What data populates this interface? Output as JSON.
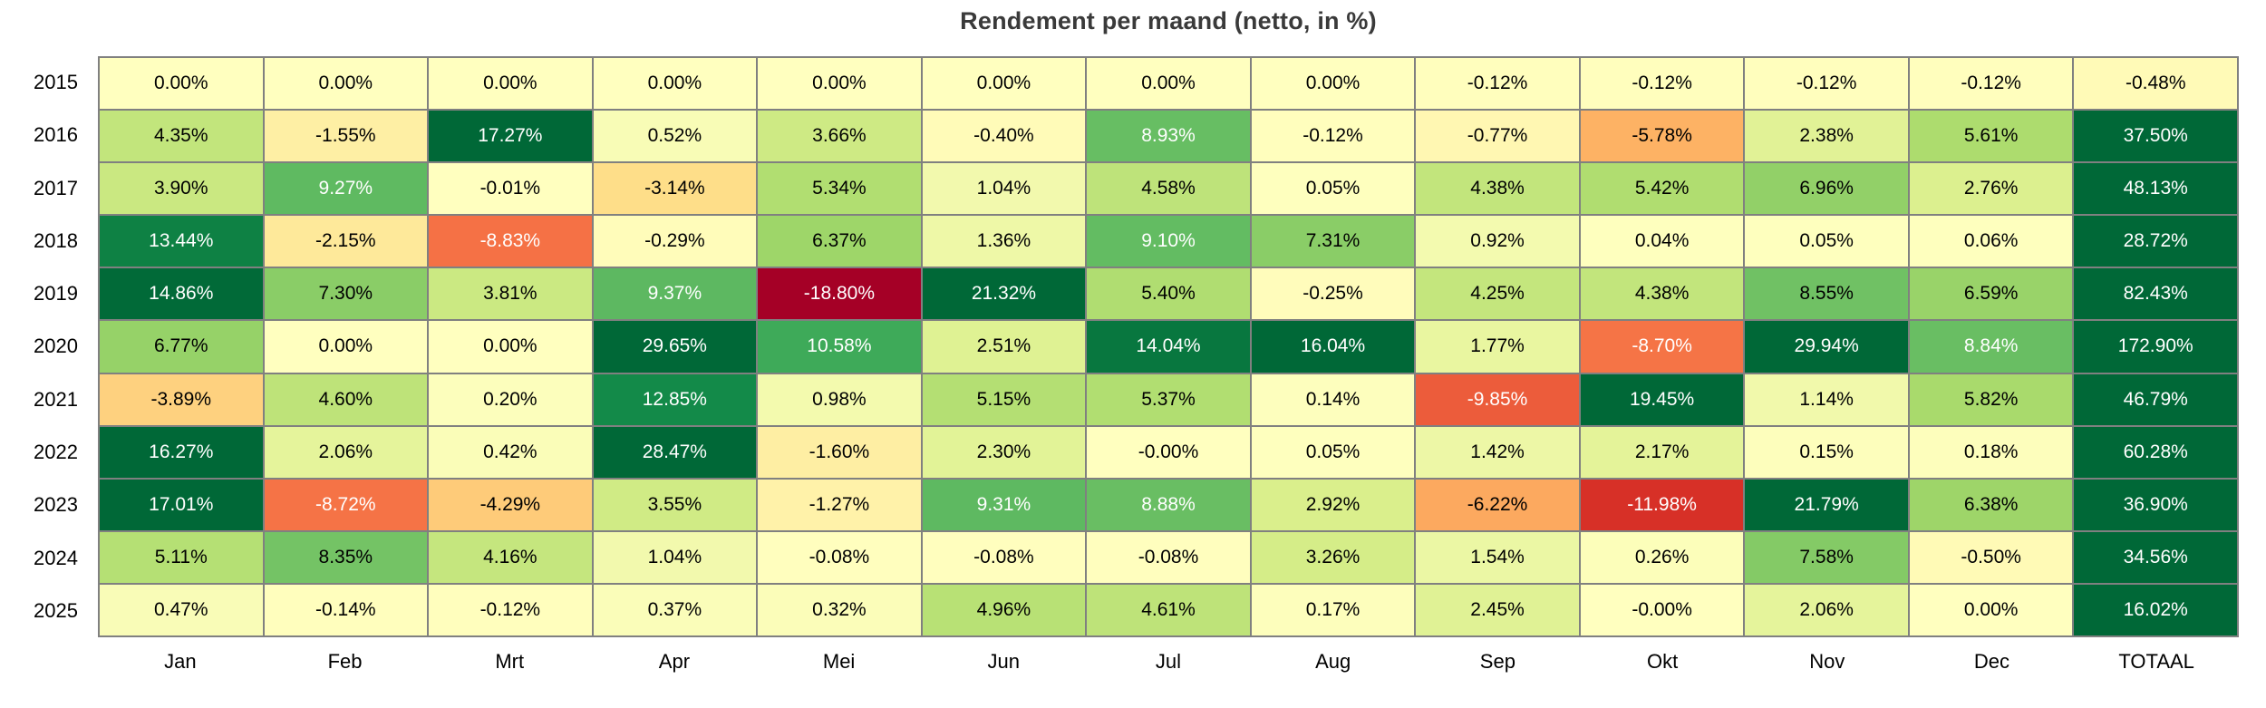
{
  "title": "Rendement per maand (netto, in %)",
  "chart_data": {
    "type": "heatmap",
    "title": "Rendement per maand (netto, in %)",
    "x_labels": [
      "Jan",
      "Feb",
      "Mrt",
      "Apr",
      "Mei",
      "Jun",
      "Jul",
      "Aug",
      "Sep",
      "Okt",
      "Nov",
      "Dec",
      "TOTAAL"
    ],
    "y_labels": [
      "2015",
      "2016",
      "2017",
      "2018",
      "2019",
      "2020",
      "2021",
      "2022",
      "2023",
      "2024",
      "2025"
    ],
    "cell_labels": [
      [
        "0.00%",
        "0.00%",
        "0.00%",
        "0.00%",
        "0.00%",
        "0.00%",
        "0.00%",
        "0.00%",
        "-0.12%",
        "-0.12%",
        "-0.12%",
        "-0.12%",
        "-0.48%"
      ],
      [
        "4.35%",
        "-1.55%",
        "17.27%",
        "0.52%",
        "3.66%",
        "-0.40%",
        "8.93%",
        "-0.12%",
        "-0.77%",
        "-5.78%",
        "2.38%",
        "5.61%",
        "37.50%"
      ],
      [
        "3.90%",
        "9.27%",
        "-0.01%",
        "-3.14%",
        "5.34%",
        "1.04%",
        "4.58%",
        "0.05%",
        "4.38%",
        "5.42%",
        "6.96%",
        "2.76%",
        "48.13%"
      ],
      [
        "13.44%",
        "-2.15%",
        "-8.83%",
        "-0.29%",
        "6.37%",
        "1.36%",
        "9.10%",
        "7.31%",
        "0.92%",
        "0.04%",
        "0.05%",
        "0.06%",
        "28.72%"
      ],
      [
        "14.86%",
        "7.30%",
        "3.81%",
        "9.37%",
        "-18.80%",
        "21.32%",
        "5.40%",
        "-0.25%",
        "4.25%",
        "4.38%",
        "8.55%",
        "6.59%",
        "82.43%"
      ],
      [
        "6.77%",
        "0.00%",
        "0.00%",
        "29.65%",
        "10.58%",
        "2.51%",
        "14.04%",
        "16.04%",
        "1.77%",
        "-8.70%",
        "29.94%",
        "8.84%",
        "172.90%"
      ],
      [
        "-3.89%",
        "4.60%",
        "0.20%",
        "12.85%",
        "0.98%",
        "5.15%",
        "5.37%",
        "0.14%",
        "-9.85%",
        "19.45%",
        "1.14%",
        "5.82%",
        "46.79%"
      ],
      [
        "16.27%",
        "2.06%",
        "0.42%",
        "28.47%",
        "-1.60%",
        "2.30%",
        "-0.00%",
        "0.05%",
        "1.42%",
        "2.17%",
        "0.15%",
        "0.18%",
        "60.28%"
      ],
      [
        "17.01%",
        "-8.72%",
        "-4.29%",
        "3.55%",
        "-1.27%",
        "9.31%",
        "8.88%",
        "2.92%",
        "-6.22%",
        "-11.98%",
        "21.79%",
        "6.38%",
        "36.90%"
      ],
      [
        "5.11%",
        "8.35%",
        "4.16%",
        "1.04%",
        "-0.08%",
        "-0.08%",
        "-0.08%",
        "3.26%",
        "1.54%",
        "0.26%",
        "7.58%",
        "-0.50%",
        "34.56%"
      ],
      [
        "0.47%",
        "-0.14%",
        "-0.12%",
        "0.37%",
        "0.32%",
        "4.96%",
        "4.61%",
        "0.17%",
        "2.45%",
        "-0.00%",
        "2.06%",
        "0.00%",
        "16.02%"
      ]
    ],
    "values": [
      [
        0.0,
        0.0,
        0.0,
        0.0,
        0.0,
        0.0,
        0.0,
        0.0,
        -0.12,
        -0.12,
        -0.12,
        -0.12,
        -0.48
      ],
      [
        4.35,
        -1.55,
        17.27,
        0.52,
        3.66,
        -0.4,
        8.93,
        -0.12,
        -0.77,
        -5.78,
        2.38,
        5.61,
        37.5
      ],
      [
        3.9,
        9.27,
        -0.01,
        -3.14,
        5.34,
        1.04,
        4.58,
        0.05,
        4.38,
        5.42,
        6.96,
        2.76,
        48.13
      ],
      [
        13.44,
        -2.15,
        -8.83,
        -0.29,
        6.37,
        1.36,
        9.1,
        7.31,
        0.92,
        0.04,
        0.05,
        0.06,
        28.72
      ],
      [
        14.86,
        7.3,
        3.81,
        9.37,
        -18.8,
        21.32,
        5.4,
        -0.25,
        4.25,
        4.38,
        8.55,
        6.59,
        82.43
      ],
      [
        6.77,
        0.0,
        0.0,
        29.65,
        10.58,
        2.51,
        14.04,
        16.04,
        1.77,
        -8.7,
        29.94,
        8.84,
        172.9
      ],
      [
        -3.89,
        4.6,
        0.2,
        12.85,
        0.98,
        5.15,
        5.37,
        0.14,
        -9.85,
        19.45,
        1.14,
        5.82,
        46.79
      ],
      [
        16.27,
        2.06,
        0.42,
        28.47,
        -1.6,
        2.3,
        -0.0,
        0.05,
        1.42,
        2.17,
        0.15,
        0.18,
        60.28
      ],
      [
        17.01,
        -8.72,
        -4.29,
        3.55,
        -1.27,
        9.31,
        8.88,
        2.92,
        -6.22,
        -11.98,
        21.79,
        6.38,
        36.9
      ],
      [
        5.11,
        8.35,
        4.16,
        1.04,
        -0.08,
        -0.08,
        -0.08,
        3.26,
        1.54,
        0.26,
        7.58,
        -0.5,
        34.56
      ],
      [
        0.47,
        -0.14,
        -0.12,
        0.37,
        0.32,
        4.96,
        4.61,
        0.17,
        2.45,
        -0.0,
        2.06,
        0.0,
        16.02
      ]
    ],
    "colormap": "RdYlGn",
    "colormap_anchors": [
      "#a50026",
      "#d73027",
      "#f46d43",
      "#fdae61",
      "#fee08b",
      "#ffffbf",
      "#d9ef8b",
      "#a6d96a",
      "#66bd63",
      "#1a9850",
      "#006837"
    ],
    "vmin": -15,
    "vmax": 15,
    "grid_color": "#808080",
    "text_dark": "#000000",
    "text_light": "#ffffff",
    "luminance_threshold": 156,
    "legend_position": "none",
    "grid_on": true
  }
}
